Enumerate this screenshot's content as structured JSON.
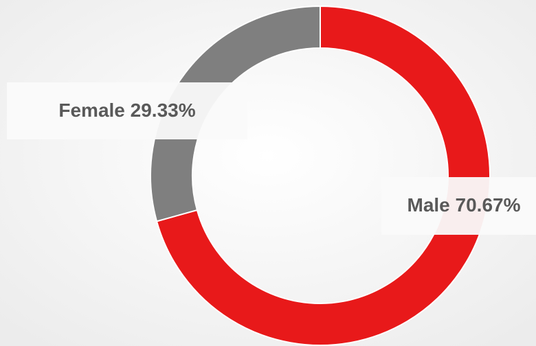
{
  "chart_data": {
    "type": "donut",
    "categories": [
      "Male",
      "Female"
    ],
    "values": [
      70.67,
      29.33
    ],
    "value_labels": [
      "70.67%",
      "29.33%"
    ],
    "colors": [
      "#e8191a",
      "#7f7f7f"
    ]
  }
}
